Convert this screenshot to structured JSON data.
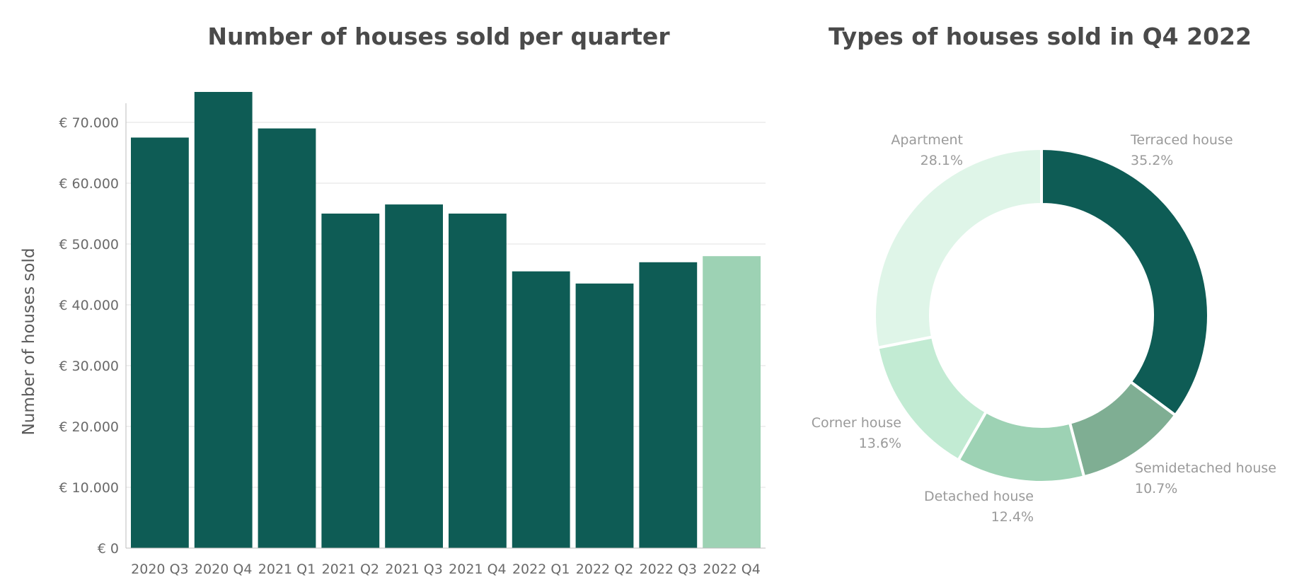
{
  "chart_data": [
    {
      "type": "bar",
      "title": "Number of houses sold per quarter",
      "ylabel": "Number of houses sold",
      "xlabel": "",
      "categories": [
        "2020 Q3",
        "2020 Q4",
        "2021 Q1",
        "2021 Q2",
        "2021 Q3",
        "2021 Q4",
        "2022 Q1",
        "2022 Q2",
        "2022 Q3",
        "2022 Q4"
      ],
      "values": [
        67500,
        75000,
        69000,
        55000,
        56500,
        55000,
        45500,
        43500,
        47000,
        48000
      ],
      "highlight_index": 9,
      "ylim": [
        0,
        75000
      ],
      "yticks": [
        0,
        10000,
        20000,
        30000,
        40000,
        50000,
        60000,
        70000
      ],
      "ytick_labels": [
        "€ 0",
        "€ 10.000",
        "€ 20.000",
        "€ 30.000",
        "€ 40.000",
        "€ 50.000",
        "€ 60.000",
        "€ 70.000"
      ],
      "grid": true,
      "colors": {
        "bar": "#0e5c55",
        "highlight": "#9dd2b4"
      }
    },
    {
      "type": "pie",
      "style": "donut",
      "title": "Types of houses sold in Q4 2022",
      "slices": [
        {
          "label": "Terraced house",
          "value": 35.2,
          "pct": "35.2%",
          "color": "#0e5c55"
        },
        {
          "label": "Semidetached house",
          "value": 10.7,
          "pct": "10.7%",
          "color": "#7fae93"
        },
        {
          "label": "Detached house",
          "value": 12.4,
          "pct": "12.4%",
          "color": "#9dd2b4"
        },
        {
          "label": "Corner house",
          "value": 13.6,
          "pct": "13.6%",
          "color": "#c2ebd3"
        },
        {
          "label": "Apartment",
          "value": 28.1,
          "pct": "28.1%",
          "color": "#dff5e8"
        }
      ]
    }
  ]
}
